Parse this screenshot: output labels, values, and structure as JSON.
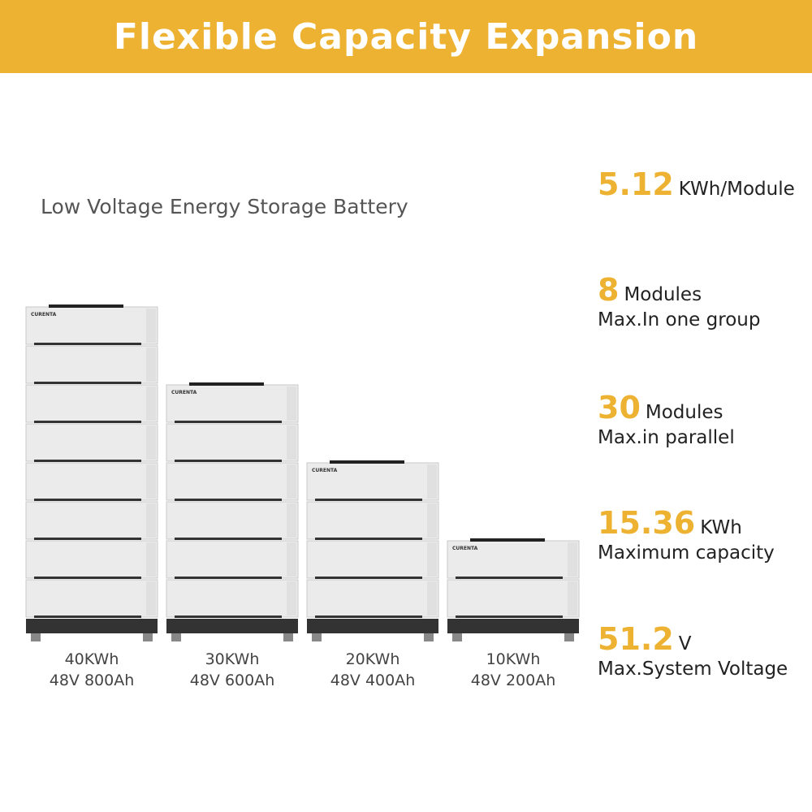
{
  "header": {
    "title": "Flexible Capacity Expansion"
  },
  "subtitle": "Low Voltage Energy Storage Battery",
  "brand": "CURENTA",
  "stacks": [
    {
      "capacity": "40KWh",
      "spec": "48V 800Ah"
    },
    {
      "capacity": "30KWh",
      "spec": "48V 600Ah"
    },
    {
      "capacity": "20KWh",
      "spec": "48V 400Ah"
    },
    {
      "capacity": "10KWh",
      "spec": "48V 200Ah"
    }
  ],
  "specs": [
    {
      "value": "5.12",
      "unit": "KWh/Module"
    },
    {
      "value": "8",
      "unit": "Modules",
      "description": "Max.In one group"
    },
    {
      "value": "30",
      "unit": "Modules",
      "description": "Max.in parallel"
    },
    {
      "value": "15.36",
      "unit": "KWh",
      "description": "Maximum capacity"
    },
    {
      "value": "51.2",
      "unit": "V",
      "description": "Max.System Voltage"
    }
  ]
}
